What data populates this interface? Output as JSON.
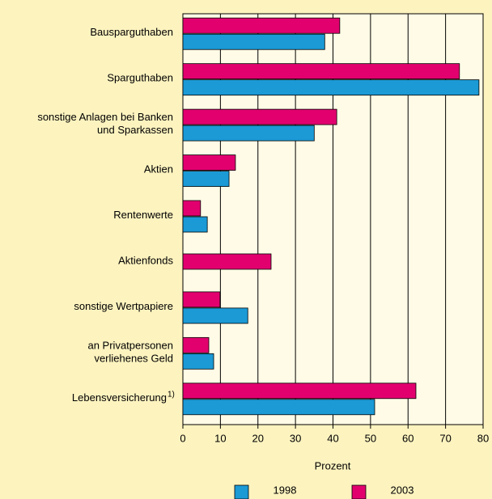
{
  "chart_data": {
    "type": "hbar",
    "categories": [
      "Bausparguthaben",
      "Sparguthaben",
      "sonstige Anlagen bei Banken\nund Sparkassen",
      "Aktien",
      "Rentenwerte",
      "Aktienfonds",
      "sonstige Wertpapiere",
      "an Privatpersonen\nverliehenes Geld",
      "Lebensversicherung"
    ],
    "annotations": [
      {
        "category": 8,
        "text": "1)"
      }
    ],
    "series": [
      {
        "name": "2003",
        "color": "#e2006f",
        "values": [
          41.8,
          73.7,
          41.0,
          14.0,
          4.7,
          23.5,
          9.9,
          6.9,
          62.1
        ]
      },
      {
        "name": "1998",
        "color": "#1b9ad6",
        "values": [
          37.8,
          78.9,
          35.0,
          12.3,
          6.5,
          null,
          17.3,
          8.2,
          51.1
        ]
      }
    ],
    "xlabel": "Prozent",
    "xlim": [
      0,
      80
    ],
    "xticks": [
      0,
      10,
      20,
      30,
      40,
      50,
      60,
      70,
      80
    ],
    "grid": true,
    "legend_order": [
      1,
      0
    ]
  }
}
